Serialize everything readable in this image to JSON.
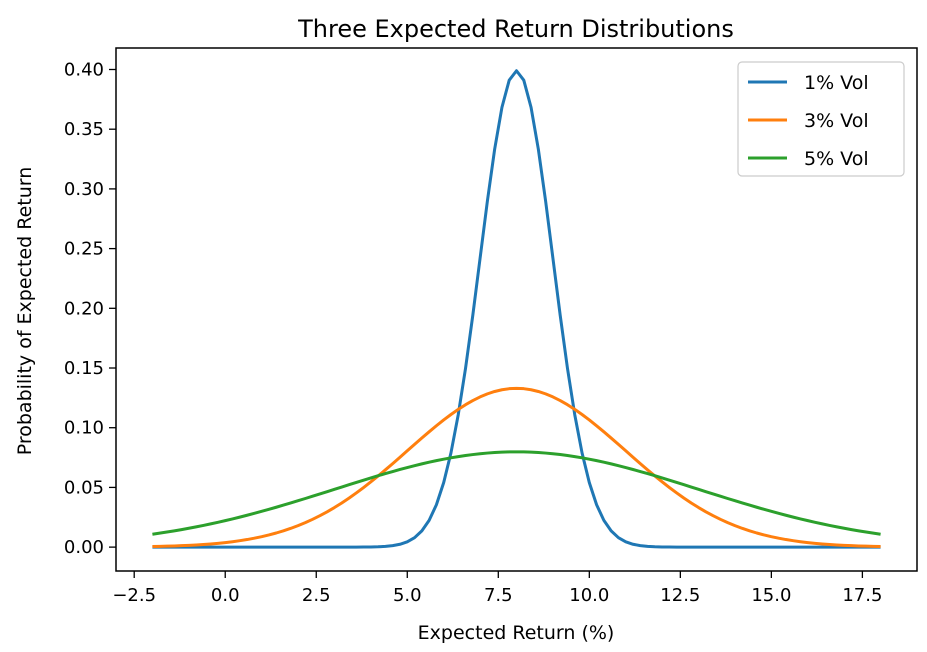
{
  "chart_data": {
    "type": "line",
    "title": "Three Expected Return Distributions",
    "xlabel": "Expected Return (%)",
    "ylabel": "Probability of Expected Return",
    "xlim": [
      -3.0,
      19.0
    ],
    "ylim": [
      -0.02,
      0.418
    ],
    "x_ticks": [
      -2.5,
      0.0,
      2.5,
      5.0,
      7.5,
      10.0,
      12.5,
      15.0,
      17.5
    ],
    "x_tick_labels": [
      "−2.5",
      "0.0",
      "2.5",
      "5.0",
      "7.5",
      "10.0",
      "12.5",
      "15.0",
      "17.5"
    ],
    "y_ticks": [
      0.0,
      0.05,
      0.1,
      0.15,
      0.2,
      0.25,
      0.3,
      0.35,
      0.4
    ],
    "y_tick_labels": [
      "0.00",
      "0.05",
      "0.10",
      "0.15",
      "0.20",
      "0.25",
      "0.30",
      "0.35",
      "0.40"
    ],
    "grid": false,
    "legend_position": "top-right",
    "series": [
      {
        "name": "1% Vol",
        "color": "#1f77b4",
        "mean": 8.0,
        "std": 1.0,
        "x": [
          -2.0,
          -1.0,
          0.0,
          1.0,
          2.0,
          3.0,
          4.0,
          5.0,
          5.5,
          6.0,
          6.5,
          7.0,
          7.5,
          8.0,
          8.5,
          9.0,
          9.5,
          10.0,
          10.5,
          11.0,
          12.0,
          13.0,
          14.0,
          15.0,
          16.0,
          17.0,
          18.0
        ],
        "values": [
          0.0,
          0.0,
          0.0,
          0.0,
          0.0,
          0.0,
          0.0001,
          0.0044,
          0.0175,
          0.054,
          0.1295,
          0.242,
          0.3521,
          0.3989,
          0.3521,
          0.242,
          0.1295,
          0.054,
          0.0175,
          0.0044,
          0.0001,
          0.0,
          0.0,
          0.0,
          0.0,
          0.0,
          0.0
        ]
      },
      {
        "name": "3% Vol",
        "color": "#ff7f0e",
        "mean": 8.0,
        "std": 3.0,
        "x": [
          -2.0,
          -1.0,
          0.0,
          1.0,
          2.0,
          3.0,
          4.0,
          5.0,
          6.0,
          7.0,
          8.0,
          9.0,
          10.0,
          11.0,
          12.0,
          13.0,
          14.0,
          15.0,
          16.0,
          17.0,
          18.0
        ],
        "values": [
          0.0005,
          0.0015,
          0.0038,
          0.0087,
          0.018,
          0.0332,
          0.0547,
          0.0807,
          0.1065,
          0.1258,
          0.133,
          0.1258,
          0.1065,
          0.0807,
          0.0547,
          0.0332,
          0.018,
          0.0087,
          0.0038,
          0.0015,
          0.0005
        ]
      },
      {
        "name": "5% Vol",
        "color": "#2ca02c",
        "mean": 8.0,
        "std": 5.0,
        "x": [
          -2.0,
          -1.0,
          0.0,
          1.0,
          2.0,
          3.0,
          4.0,
          5.0,
          6.0,
          7.0,
          8.0,
          9.0,
          10.0,
          11.0,
          12.0,
          13.0,
          14.0,
          15.0,
          16.0,
          17.0,
          18.0
        ],
        "values": [
          0.0108,
          0.0158,
          0.0222,
          0.0299,
          0.0388,
          0.0484,
          0.058,
          0.0666,
          0.0737,
          0.0782,
          0.0798,
          0.0782,
          0.0737,
          0.0666,
          0.058,
          0.0484,
          0.0388,
          0.0299,
          0.0222,
          0.0158,
          0.0108
        ]
      }
    ]
  }
}
